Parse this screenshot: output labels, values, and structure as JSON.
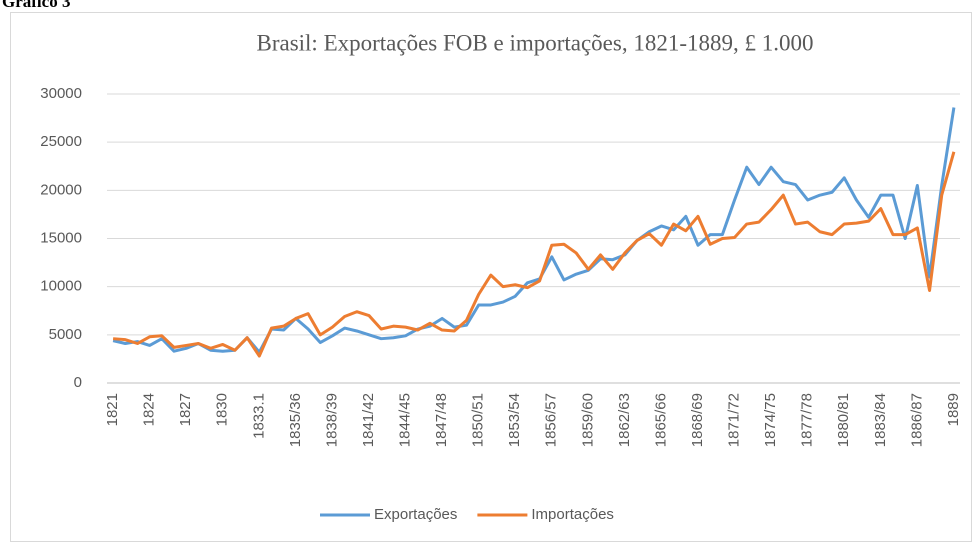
{
  "heading": "Gráfico 3",
  "chart_data": {
    "type": "line",
    "title": "Brasil: Exportações FOB e importações, 1821-1889, £ 1.000",
    "categories": [
      "1821",
      null,
      null,
      "1824",
      null,
      null,
      "1827",
      null,
      null,
      "1830",
      null,
      null,
      "1833.1",
      null,
      null,
      "1835/36",
      null,
      null,
      "1838/39",
      null,
      null,
      "1841/42",
      null,
      null,
      "1844/45",
      null,
      null,
      "1847/48",
      null,
      null,
      "1850/51",
      null,
      null,
      "1853/54",
      null,
      null,
      "1856/57",
      null,
      null,
      "1859/60",
      null,
      null,
      "1862/63",
      null,
      null,
      "1865/66",
      null,
      null,
      "1868/69",
      null,
      null,
      "1871/72",
      null,
      null,
      "1874/75",
      null,
      null,
      "1877/78",
      null,
      null,
      "1880/81",
      null,
      null,
      "1883/84",
      null,
      null,
      "1886/87",
      null,
      null,
      "1889"
    ],
    "series": [
      {
        "name": "Exportações",
        "color": "#5b9bd5",
        "values": [
          4400,
          4100,
          4300,
          3900,
          4600,
          3300,
          3600,
          4100,
          3400,
          3300,
          3400,
          4700,
          3200,
          5600,
          5500,
          6700,
          5600,
          4200,
          4900,
          5700,
          5400,
          5000,
          4600,
          4700,
          4900,
          5600,
          5900,
          6700,
          5800,
          6000,
          8100,
          8100,
          8400,
          9000,
          10400,
          10800,
          13100,
          10700,
          11300,
          11700,
          12900,
          12800,
          13300,
          14800,
          15700,
          16300,
          15900,
          17300,
          14300,
          15400,
          15400,
          19000,
          22400,
          20600,
          22400,
          20900,
          20600,
          19000,
          19500,
          19800,
          21300,
          19000,
          17200,
          19500,
          19500,
          15000,
          20500,
          11000,
          20500,
          28600
        ]
      },
      {
        "name": "Importações",
        "color": "#ed7d31",
        "values": [
          4600,
          4500,
          4100,
          4800,
          4900,
          3700,
          3900,
          4100,
          3600,
          4000,
          3400,
          4700,
          2800,
          5700,
          5900,
          6700,
          7200,
          5000,
          5800,
          6900,
          7400,
          7000,
          5600,
          5900,
          5800,
          5500,
          6200,
          5500,
          5400,
          6500,
          9200,
          11200,
          10000,
          10200,
          9900,
          10600,
          14300,
          14400,
          13500,
          11800,
          13300,
          11800,
          13500,
          14800,
          15500,
          14300,
          16500,
          15800,
          17300,
          14400,
          15000,
          15100,
          16500,
          16700,
          18000,
          19500,
          16500,
          16700,
          15700,
          15400,
          16500,
          16600,
          16800,
          18100,
          15400,
          15400,
          16100,
          9600,
          19500,
          24000
        ]
      }
    ],
    "ylim": [
      0,
      30000
    ],
    "yticks": [
      0,
      5000,
      10000,
      15000,
      20000,
      25000,
      30000
    ],
    "grid": true,
    "legend": "bottom"
  }
}
